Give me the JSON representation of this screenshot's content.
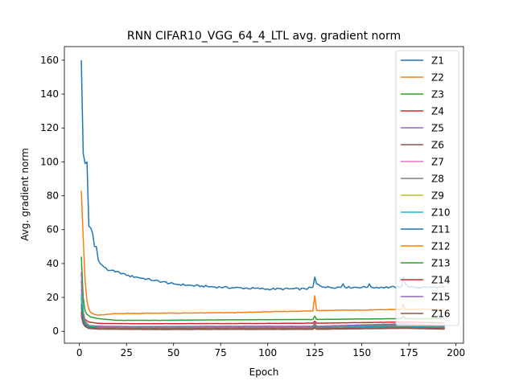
{
  "chart_data": {
    "type": "line",
    "title": "RNN CIFAR10_VGG_64_4_LTL avg. gradient norm",
    "xlabel": "Epoch",
    "ylabel": "Avg. gradient norm",
    "xlim": [
      -8,
      204
    ],
    "ylim": [
      -7,
      168
    ],
    "xticks": [
      0,
      25,
      50,
      75,
      100,
      125,
      150,
      175,
      200
    ],
    "yticks": [
      0,
      20,
      40,
      60,
      80,
      100,
      120,
      140,
      160
    ],
    "grid": false,
    "legend_position": "top-right",
    "x_start": 1,
    "x_end": 194,
    "series": [
      {
        "name": "Z1",
        "color": "#1f77b4",
        "values_sparse": [
          [
            1,
            160
          ],
          [
            2,
            105
          ],
          [
            3,
            99
          ],
          [
            4,
            100
          ],
          [
            5,
            62
          ],
          [
            6,
            61
          ],
          [
            7,
            58
          ],
          [
            8,
            50
          ],
          [
            9,
            50
          ],
          [
            10,
            42
          ],
          [
            11,
            40
          ],
          [
            13,
            38
          ],
          [
            15,
            36
          ],
          [
            17,
            36
          ],
          [
            19,
            35
          ],
          [
            21,
            35
          ],
          [
            25,
            33
          ],
          [
            30,
            32
          ],
          [
            40,
            30
          ],
          [
            50,
            28
          ],
          [
            60,
            27
          ],
          [
            75,
            26
          ],
          [
            100,
            25
          ],
          [
            120,
            25
          ],
          [
            124,
            26
          ],
          [
            125,
            32
          ],
          [
            126,
            28
          ],
          [
            130,
            26
          ],
          [
            139,
            26
          ],
          [
            140,
            28
          ],
          [
            141,
            26
          ],
          [
            153,
            26
          ],
          [
            154,
            28
          ],
          [
            155,
            26
          ],
          [
            170,
            26
          ],
          [
            171,
            26
          ],
          [
            172,
            32
          ],
          [
            173,
            28
          ],
          [
            175,
            26
          ],
          [
            194,
            26
          ]
        ]
      },
      {
        "name": "Z2",
        "color": "#ff7f0e",
        "values_sparse": [
          [
            1,
            83
          ],
          [
            2,
            55
          ],
          [
            3,
            30
          ],
          [
            4,
            18
          ],
          [
            5,
            13
          ],
          [
            6,
            11
          ],
          [
            8,
            10
          ],
          [
            10,
            9.5
          ],
          [
            20,
            10.5
          ],
          [
            40,
            10.7
          ],
          [
            60,
            10.8
          ],
          [
            80,
            11
          ],
          [
            100,
            11.5
          ],
          [
            120,
            12
          ],
          [
            124,
            12
          ],
          [
            125,
            21
          ],
          [
            126,
            12.3
          ],
          [
            140,
            12.5
          ],
          [
            150,
            12.5
          ],
          [
            171,
            13
          ],
          [
            172,
            16
          ],
          [
            173,
            13
          ],
          [
            194,
            13
          ]
        ]
      },
      {
        "name": "Z3",
        "color": "#2ca02c",
        "values_sparse": [
          [
            1,
            44
          ],
          [
            2,
            20
          ],
          [
            3,
            12
          ],
          [
            4,
            10
          ],
          [
            6,
            8.5
          ],
          [
            10,
            7.5
          ],
          [
            20,
            6.5
          ],
          [
            40,
            6.5
          ],
          [
            80,
            6.8
          ],
          [
            120,
            7
          ],
          [
            124,
            7
          ],
          [
            125,
            9
          ],
          [
            126,
            7
          ],
          [
            171,
            7.5
          ],
          [
            172,
            9
          ],
          [
            173,
            7.5
          ],
          [
            194,
            7.5
          ]
        ]
      },
      {
        "name": "Z4",
        "color": "#d62728",
        "values_sparse": [
          [
            1,
            14
          ],
          [
            2,
            10
          ],
          [
            3,
            7
          ],
          [
            5,
            5.5
          ],
          [
            10,
            4.7
          ],
          [
            30,
            4.5
          ],
          [
            80,
            4.6
          ],
          [
            124,
            4.8
          ],
          [
            125,
            6
          ],
          [
            126,
            4.8
          ],
          [
            172,
            5.5
          ],
          [
            194,
            5
          ]
        ]
      },
      {
        "name": "Z5",
        "color": "#9467bd",
        "values_sparse": [
          [
            1,
            35
          ],
          [
            2,
            12
          ],
          [
            3,
            6
          ],
          [
            5,
            3.5
          ],
          [
            10,
            3
          ],
          [
            30,
            2.8
          ],
          [
            80,
            3
          ],
          [
            124,
            3
          ],
          [
            125,
            5
          ],
          [
            126,
            3
          ],
          [
            172,
            4.5
          ],
          [
            194,
            3.2
          ]
        ]
      },
      {
        "name": "Z6",
        "color": "#8c564b",
        "values_sparse": [
          [
            1,
            20
          ],
          [
            2,
            8
          ],
          [
            3,
            5
          ],
          [
            5,
            3
          ],
          [
            10,
            2.5
          ],
          [
            40,
            2.2
          ],
          [
            124,
            2.4
          ],
          [
            125,
            4
          ],
          [
            126,
            2.4
          ],
          [
            172,
            3.5
          ],
          [
            194,
            2.5
          ]
        ]
      },
      {
        "name": "Z7",
        "color": "#e377c2",
        "values_sparse": [
          [
            1,
            25
          ],
          [
            2,
            9
          ],
          [
            3,
            5
          ],
          [
            5,
            3
          ],
          [
            10,
            2.2
          ],
          [
            40,
            2
          ],
          [
            124,
            2.2
          ],
          [
            125,
            3.5
          ],
          [
            126,
            2.2
          ],
          [
            172,
            3
          ],
          [
            194,
            2.3
          ]
        ]
      },
      {
        "name": "Z8",
        "color": "#7f7f7f",
        "values_sparse": [
          [
            1,
            30
          ],
          [
            2,
            10
          ],
          [
            3,
            6
          ],
          [
            5,
            3.5
          ],
          [
            10,
            2.5
          ],
          [
            40,
            2.2
          ],
          [
            124,
            2.4
          ],
          [
            125,
            4.5
          ],
          [
            126,
            2.4
          ],
          [
            172,
            4
          ],
          [
            194,
            2.6
          ]
        ]
      },
      {
        "name": "Z9",
        "color": "#bcbd22",
        "values_sparse": [
          [
            1,
            18
          ],
          [
            2,
            7
          ],
          [
            3,
            4
          ],
          [
            5,
            2.5
          ],
          [
            10,
            2
          ],
          [
            40,
            1.8
          ],
          [
            124,
            2
          ],
          [
            125,
            3
          ],
          [
            126,
            2
          ],
          [
            172,
            2.8
          ],
          [
            194,
            2.1
          ]
        ]
      },
      {
        "name": "Z10",
        "color": "#17becf",
        "values_sparse": [
          [
            1,
            22
          ],
          [
            2,
            8
          ],
          [
            3,
            4.5
          ],
          [
            5,
            2.8
          ],
          [
            10,
            2
          ],
          [
            40,
            1.8
          ],
          [
            124,
            2
          ],
          [
            125,
            3.2
          ],
          [
            126,
            2
          ],
          [
            172,
            3
          ],
          [
            194,
            2.1
          ]
        ]
      },
      {
        "name": "Z11",
        "color": "#1f77b4",
        "values_sparse": [
          [
            1,
            16
          ],
          [
            2,
            7
          ],
          [
            3,
            4
          ],
          [
            5,
            2.5
          ],
          [
            10,
            1.8
          ],
          [
            40,
            1.6
          ],
          [
            124,
            1.8
          ],
          [
            125,
            3
          ],
          [
            126,
            1.8
          ],
          [
            172,
            2.6
          ],
          [
            194,
            1.9
          ]
        ]
      },
      {
        "name": "Z12",
        "color": "#ff7f0e",
        "values_sparse": [
          [
            1,
            12
          ],
          [
            2,
            6
          ],
          [
            3,
            3.5
          ],
          [
            5,
            2.2
          ],
          [
            10,
            1.6
          ],
          [
            40,
            1.5
          ],
          [
            124,
            1.6
          ],
          [
            125,
            2.8
          ],
          [
            126,
            1.6
          ],
          [
            172,
            2.4
          ],
          [
            194,
            1.7
          ]
        ]
      },
      {
        "name": "Z13",
        "color": "#2ca02c",
        "values_sparse": [
          [
            1,
            14
          ],
          [
            2,
            6
          ],
          [
            3,
            3.5
          ],
          [
            5,
            2.2
          ],
          [
            10,
            1.6
          ],
          [
            40,
            1.4
          ],
          [
            124,
            1.5
          ],
          [
            125,
            2.6
          ],
          [
            126,
            1.5
          ],
          [
            172,
            2.2
          ],
          [
            194,
            1.6
          ]
        ]
      },
      {
        "name": "Z14",
        "color": "#d62728",
        "values_sparse": [
          [
            1,
            11
          ],
          [
            2,
            5
          ],
          [
            3,
            3
          ],
          [
            5,
            2
          ],
          [
            10,
            1.5
          ],
          [
            40,
            1.3
          ],
          [
            124,
            1.4
          ],
          [
            125,
            2.4
          ],
          [
            126,
            1.4
          ],
          [
            172,
            2
          ],
          [
            194,
            1.5
          ]
        ]
      },
      {
        "name": "Z15",
        "color": "#9467bd",
        "values_sparse": [
          [
            1,
            10
          ],
          [
            2,
            5
          ],
          [
            3,
            3
          ],
          [
            5,
            1.8
          ],
          [
            10,
            1.4
          ],
          [
            40,
            1.2
          ],
          [
            124,
            1.3
          ],
          [
            125,
            2.2
          ],
          [
            126,
            1.3
          ],
          [
            172,
            1.9
          ],
          [
            194,
            1.4
          ]
        ]
      },
      {
        "name": "Z16",
        "color": "#8c564b",
        "values_sparse": [
          [
            1,
            9
          ],
          [
            2,
            4.5
          ],
          [
            3,
            2.8
          ],
          [
            5,
            1.7
          ],
          [
            10,
            1.3
          ],
          [
            40,
            1.1
          ],
          [
            124,
            1.2
          ],
          [
            125,
            2
          ],
          [
            126,
            1.2
          ],
          [
            172,
            1.8
          ],
          [
            194,
            1.3
          ]
        ]
      }
    ]
  }
}
